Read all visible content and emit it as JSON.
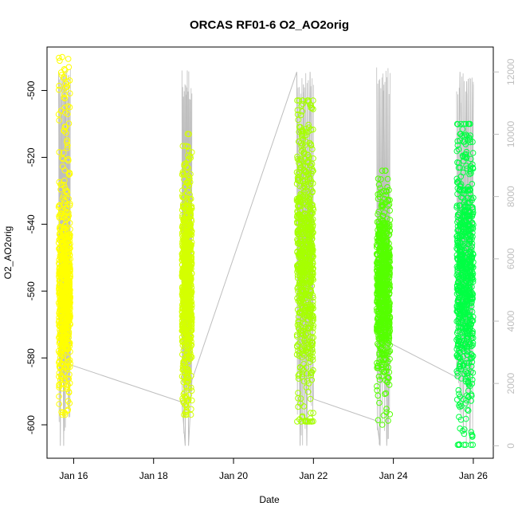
{
  "chart_data": {
    "type": "scatter",
    "title": "ORCAS RF01-6 O2_AO2orig",
    "xlabel": "Date",
    "ylabel": "O2_AO2orig",
    "x_ticks": [
      "Jan 16",
      "Jan 18",
      "Jan 20",
      "Jan 22",
      "Jan 24",
      "Jan 26"
    ],
    "y_ticks": [
      -500,
      -520,
      -540,
      -560,
      -580,
      -600
    ],
    "y2_ticks": [
      0,
      2000,
      4000,
      6000,
      8000,
      10000,
      12000
    ],
    "x_range_days": [
      "Jan 15 08:00",
      "Jan 26 12:00"
    ],
    "ylim": [
      -610,
      -487
    ],
    "y2lim": [
      -400,
      12800
    ],
    "grid": false,
    "marker": "open circle",
    "secondary_series": {
      "kind": "line",
      "color": "#bebebe",
      "description": "altitude trace on right axis",
      "points": [
        {
          "x": "Jan 15 15:00",
          "y": 12000
        },
        {
          "x": "Jan 15 16:00",
          "y": 0
        },
        {
          "x": "Jan 15 17:00",
          "y": 11800
        },
        {
          "x": "Jan 15 18:00",
          "y": 0
        },
        {
          "x": "Jan 15 19:00",
          "y": 12000
        },
        {
          "x": "Jan 15 20:00",
          "y": 2100
        },
        {
          "x": "Jan 15 21:00",
          "y": 11900
        },
        {
          "x": "Jan 15 22:00",
          "y": 2600
        },
        {
          "x": "Jan 18 17:00",
          "y": 1400
        },
        {
          "x": "Jan 18 19:00",
          "y": 0
        },
        {
          "x": "Jan 18 20:00",
          "y": 11500
        },
        {
          "x": "Jan 18 21:00",
          "y": 0
        },
        {
          "x": "Jan 18 23:00",
          "y": 2100
        },
        {
          "x": "Jan 21 14:00",
          "y": 12000
        },
        {
          "x": "Jan 21 16:00",
          "y": 0
        },
        {
          "x": "Jan 21 18:00",
          "y": 11600
        },
        {
          "x": "Jan 21 20:00",
          "y": 0
        },
        {
          "x": "Jan 21 22:00",
          "y": 12000
        },
        {
          "x": "Jan 22 00:00",
          "y": 1500
        },
        {
          "x": "Jan 23 14:00",
          "y": 800
        },
        {
          "x": "Jan 23 16:00",
          "y": 0
        },
        {
          "x": "Jan 23 18:00",
          "y": 11400
        },
        {
          "x": "Jan 23 20:00",
          "y": 0
        },
        {
          "x": "Jan 23 22:00",
          "y": 3300
        },
        {
          "x": "Jan 25 14:00",
          "y": 2200
        },
        {
          "x": "Jan 25 16:00",
          "y": 12000
        },
        {
          "x": "Jan 25 18:00",
          "y": 400
        },
        {
          "x": "Jan 25 20:00",
          "y": 11700
        },
        {
          "x": "Jan 25 22:00",
          "y": 0
        },
        {
          "x": "Jan 26 00:00",
          "y": 11600
        }
      ]
    },
    "series": [
      {
        "flight_date": "Jan 15",
        "color": "#ffff00",
        "x_start": "Jan 15 15:00",
        "x_end": "Jan 15 22:00",
        "y_min": -597,
        "y_max": -490,
        "y_core": [
          -585,
          -535
        ]
      },
      {
        "flight_date": "Jan 18",
        "color": "#d4ff00",
        "x_start": "Jan 18 17:00",
        "x_end": "Jan 18 23:00",
        "y_min": -597,
        "y_max": -513,
        "y_core": [
          -585,
          -530
        ]
      },
      {
        "flight_date": "Jan 21",
        "color": "#a6ff00",
        "x_start": "Jan 21 14:00",
        "x_end": "Jan 22 00:00",
        "y_min": -599,
        "y_max": -503,
        "y_core": [
          -590,
          -510
        ]
      },
      {
        "flight_date": "Jan 23",
        "color": "#55ff00",
        "x_start": "Jan 23 14:00",
        "x_end": "Jan 23 22:00",
        "y_min": -600,
        "y_max": -524,
        "y_core": [
          -585,
          -535
        ]
      },
      {
        "flight_date": "Jan 25",
        "color": "#00ff44",
        "x_start": "Jan 25 14:00",
        "x_end": "Jan 26 00:00",
        "y_min": -606,
        "y_max": -510,
        "y_core": [
          -595,
          -520
        ]
      }
    ]
  }
}
